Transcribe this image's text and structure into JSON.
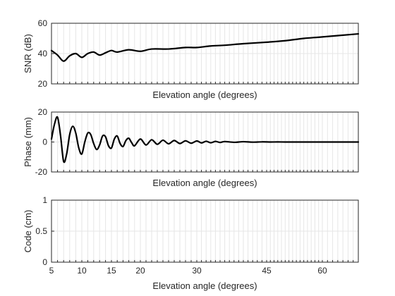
{
  "chart_data": [
    {
      "type": "line",
      "xlabel": "Elevation angle (degrees)",
      "ylabel": "SNR (dB)",
      "ylim": [
        20,
        60
      ],
      "yticks": [
        20,
        40,
        60
      ],
      "xlim": [
        5,
        67
      ],
      "x_scale": "nonlinear (denser toward high elevation)",
      "grid": "on",
      "series": [
        {
          "color": "#000000",
          "x": [
            5,
            6,
            7,
            8,
            9,
            10,
            11,
            12,
            13,
            14,
            15,
            16,
            18,
            20,
            22,
            25,
            28,
            30,
            33,
            36,
            40,
            45,
            50,
            55,
            60,
            67
          ],
          "values": [
            42,
            39,
            35,
            38.5,
            40,
            37.5,
            40,
            41,
            39,
            40.5,
            42,
            41,
            42.5,
            41.5,
            43,
            43,
            44,
            44,
            45,
            45.5,
            46.5,
            47.5,
            48.5,
            50,
            51,
            53
          ]
        }
      ]
    },
    {
      "type": "line",
      "xlabel": "Elevation angle (degrees)",
      "ylabel": "Phase (mm)",
      "ylim": [
        -20,
        20
      ],
      "yticks": [
        -20,
        0,
        20
      ],
      "xlim": [
        5,
        67
      ],
      "grid": "on",
      "series": [
        {
          "color": "#000000",
          "x": [
            5,
            5.5,
            6,
            6.5,
            7,
            7.5,
            8,
            8.5,
            9,
            9.5,
            10,
            10.5,
            11,
            11.5,
            12,
            12.5,
            13,
            13.5,
            14,
            14.5,
            15,
            15.5,
            16,
            16.5,
            17,
            17.5,
            18,
            18.5,
            19,
            20,
            21,
            22,
            23,
            24,
            25,
            26,
            27,
            28,
            29,
            30,
            31,
            32,
            33,
            34,
            35,
            36,
            38,
            40,
            42,
            44,
            46,
            48,
            50,
            53,
            56,
            60,
            64,
            67
          ],
          "values": [
            2,
            12,
            16.5,
            4,
            -13,
            -8,
            5,
            10.5,
            6,
            -4,
            -8,
            0,
            6,
            5,
            -1,
            -5,
            -2,
            4,
            3.5,
            -2.5,
            -4,
            2,
            4,
            -1,
            -3,
            1,
            2.5,
            -0.5,
            -2.5,
            2,
            -2,
            1.5,
            -1.5,
            1.2,
            -1.2,
            1,
            -1,
            0.8,
            -0.8,
            0.7,
            -0.6,
            0.5,
            -0.5,
            0.4,
            -0.3,
            0.3,
            -0.2,
            0.2,
            -0.1,
            0.1,
            0,
            0.05,
            0,
            0,
            0,
            0,
            0,
            0
          ]
        }
      ]
    },
    {
      "type": "line",
      "xlabel": "Elevation angle (degrees)",
      "ylabel": "Code (cm)",
      "ylim": [
        0,
        1
      ],
      "yticks": [
        0,
        0.5,
        1
      ],
      "xlim": [
        5,
        67
      ],
      "xticks": [
        5,
        10,
        15,
        20,
        30,
        45,
        60
      ],
      "grid": "on",
      "series": []
    }
  ]
}
